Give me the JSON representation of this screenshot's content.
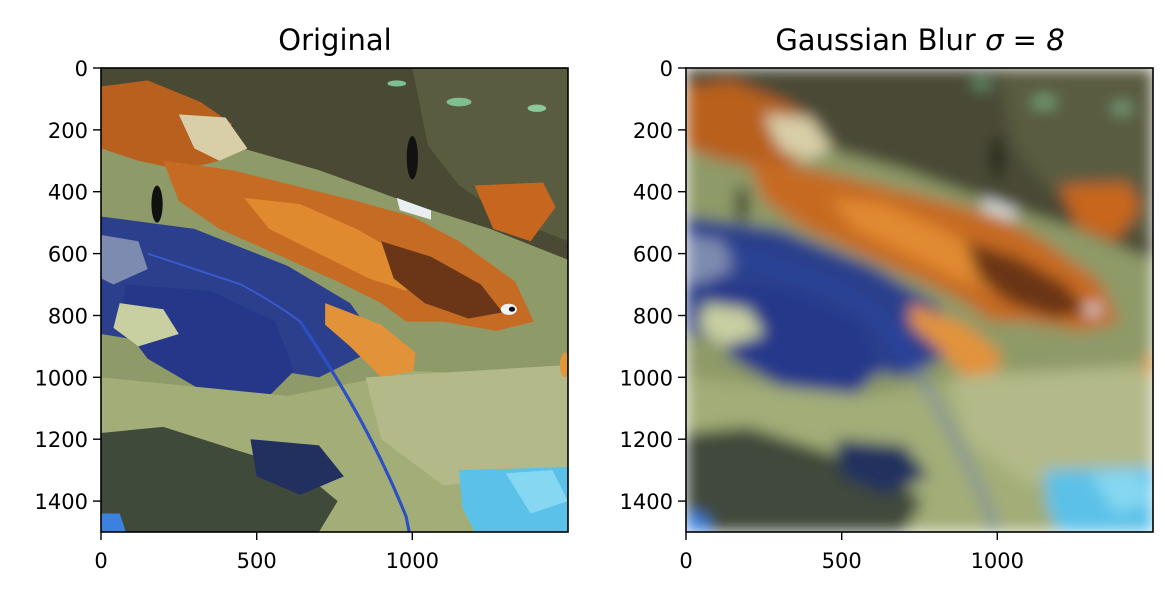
{
  "chart_data": [
    {
      "type": "image",
      "title_text": "Original",
      "title_math": "",
      "xlim": [
        0,
        1500
      ],
      "ylim": [
        1500,
        0
      ],
      "xticks": [
        0,
        500,
        1000
      ],
      "yticks": [
        0,
        200,
        400,
        600,
        800,
        1000,
        1200,
        1400
      ],
      "xtick_labels": [
        "0",
        "500",
        "1000"
      ],
      "ytick_labels": [
        "0",
        "200",
        "400",
        "600",
        "800",
        "1000",
        "1200",
        "1400"
      ],
      "blur_sigma": 0
    },
    {
      "type": "image",
      "title_text": "Gaussian Blur ",
      "title_math": "σ = 8",
      "xlim": [
        0,
        1500
      ],
      "ylim": [
        1500,
        0
      ],
      "xticks": [
        0,
        500,
        1000
      ],
      "yticks": [
        0,
        200,
        400,
        600,
        800,
        1000,
        1200,
        1400
      ],
      "xtick_labels": [
        "0",
        "500",
        "1000"
      ],
      "ytick_labels": [
        "0",
        "200",
        "400",
        "600",
        "800",
        "1000",
        "1200",
        "1400"
      ],
      "blur_sigma": 8
    }
  ],
  "colors": {
    "orange": "#c9651e",
    "blue": "#2a3f8f",
    "sage": "#8a9a64",
    "olive_dark": "#4b4a34",
    "cyan": "#5cc1e8",
    "cream": "#d9d0aa"
  }
}
